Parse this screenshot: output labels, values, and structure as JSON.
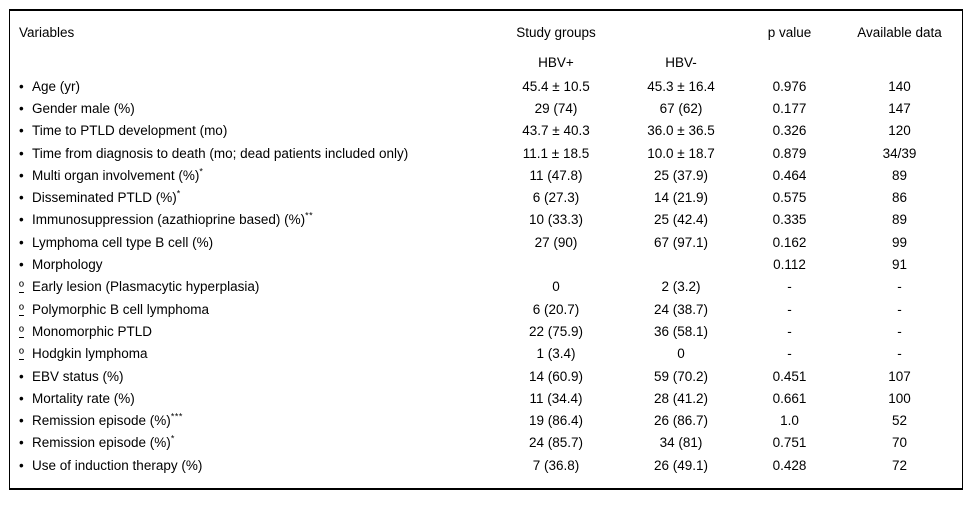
{
  "table": {
    "headers": {
      "variables": "Variables",
      "study_groups": "Study groups",
      "p_value": "p value",
      "available_data": "Available data",
      "group_pos": "HBV+",
      "group_neg": "HBV-"
    },
    "rows": [
      {
        "marker": "•",
        "label": "Age (yr)",
        "sup": "",
        "hbv_pos": "45.4 ± 10.5",
        "hbv_neg": "45.3 ± 16.4",
        "p": "0.976",
        "available": "140"
      },
      {
        "marker": "•",
        "label": "Gender male (%)",
        "sup": "",
        "hbv_pos": "29 (74)",
        "hbv_neg": "67 (62)",
        "p": "0.177",
        "available": "147"
      },
      {
        "marker": "•",
        "label": "Time to PTLD development (mo)",
        "sup": "",
        "hbv_pos": "43.7 ± 40.3",
        "hbv_neg": "36.0 ± 36.5",
        "p": "0.326",
        "available": "120"
      },
      {
        "marker": "•",
        "label": "Time from diagnosis to death (mo; dead patients included only)",
        "sup": "",
        "hbv_pos": "11.1 ± 18.5",
        "hbv_neg": "10.0 ± 18.7",
        "p": "0.879",
        "available": "34/39"
      },
      {
        "marker": "•",
        "label": "Multi organ involvement (%)",
        "sup": "*",
        "hbv_pos": "11 (47.8)",
        "hbv_neg": "25 (37.9)",
        "p": "0.464",
        "available": "89"
      },
      {
        "marker": "•",
        "label": "Disseminated PTLD (%)",
        "sup": "*",
        "hbv_pos": "6 (27.3)",
        "hbv_neg": "14 (21.9)",
        "p": "0.575",
        "available": "86"
      },
      {
        "marker": "•",
        "label": "Immunosuppression (azathioprine based) (%)",
        "sup": "**",
        "hbv_pos": "10 (33.3)",
        "hbv_neg": "25 (42.4)",
        "p": "0.335",
        "available": "89"
      },
      {
        "marker": "•",
        "label": "Lymphoma cell type B cell (%)",
        "sup": "",
        "hbv_pos": "27 (90)",
        "hbv_neg": "67 (97.1)",
        "p": "0.162",
        "available": "99"
      },
      {
        "marker": "•",
        "label": "Morphology",
        "sup": "",
        "hbv_pos": "",
        "hbv_neg": "",
        "p": "0.112",
        "available": "91"
      },
      {
        "marker": "º",
        "label": "Early lesion (Plasmacytic hyperplasia)",
        "sup": "",
        "hbv_pos": "0",
        "hbv_neg": "2 (3.2)",
        "p": "-",
        "available": "-"
      },
      {
        "marker": "º",
        "label": "Polymorphic B cell lymphoma",
        "sup": "",
        "hbv_pos": "6 (20.7)",
        "hbv_neg": "24 (38.7)",
        "p": "-",
        "available": "-"
      },
      {
        "marker": "º",
        "label": "Monomorphic PTLD",
        "sup": "",
        "hbv_pos": "22 (75.9)",
        "hbv_neg": "36 (58.1)",
        "p": "-",
        "available": "-"
      },
      {
        "marker": "º",
        "label": "Hodgkin lymphoma",
        "sup": "",
        "hbv_pos": "1 (3.4)",
        "hbv_neg": "0",
        "p": "-",
        "available": "-"
      },
      {
        "marker": "•",
        "label": "EBV status (%)",
        "sup": "",
        "hbv_pos": "14 (60.9)",
        "hbv_neg": "59 (70.2)",
        "p": "0.451",
        "available": "107"
      },
      {
        "marker": "•",
        "label": "Mortality rate (%)",
        "sup": "",
        "hbv_pos": "11 (34.4)",
        "hbv_neg": "28 (41.2)",
        "p": "0.661",
        "available": "100"
      },
      {
        "marker": "•",
        "label": "Remission episode (%)",
        "sup": "***",
        "hbv_pos": "19 (86.4)",
        "hbv_neg": "26 (86.7)",
        "p": "1.0",
        "available": "52"
      },
      {
        "marker": "•",
        "label": "Remission episode (%)",
        "sup": "*",
        "hbv_pos": "24 (85.7)",
        "hbv_neg": "34 (81)",
        "p": "0.751",
        "available": "70"
      },
      {
        "marker": "•",
        "label": "Use of induction therapy (%)",
        "sup": "",
        "hbv_pos": "7 (36.8)",
        "hbv_neg": "26 (49.1)",
        "p": "0.428",
        "available": "72"
      }
    ]
  }
}
